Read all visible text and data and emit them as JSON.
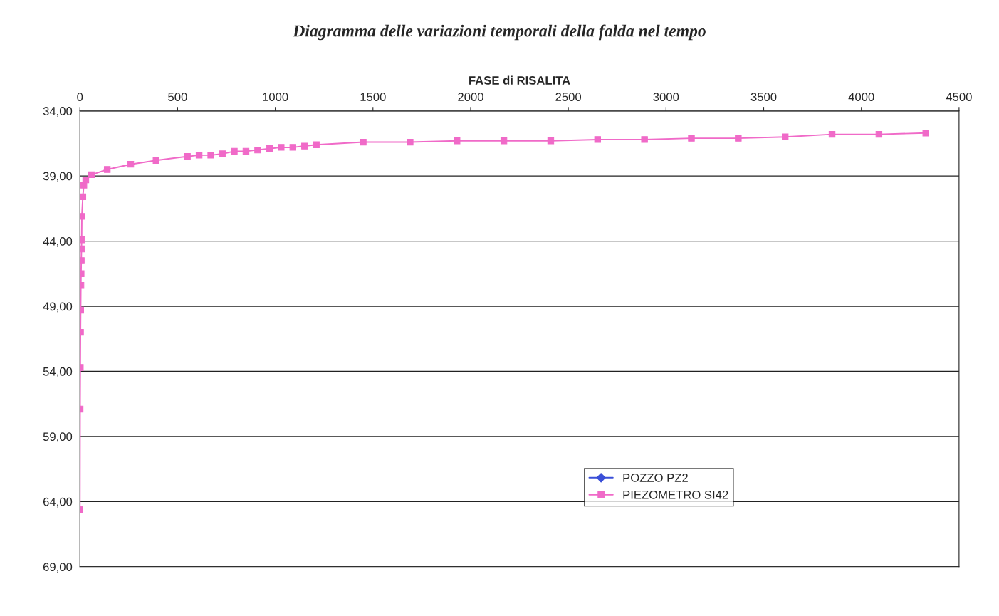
{
  "chart_data": {
    "type": "line",
    "title": "Diagramma delle variazioni temporali della falda nel tempo",
    "xlabel": "FASE di RISALITA",
    "xlim": [
      0,
      4500
    ],
    "xticks": [
      0,
      500,
      1000,
      1500,
      2000,
      2500,
      3000,
      3500,
      4000,
      4500
    ],
    "ylim": [
      69,
      34
    ],
    "yticks": [
      {
        "value": 34,
        "label": "34,00"
      },
      {
        "value": 39,
        "label": "39,00"
      },
      {
        "value": 44,
        "label": "44,00"
      },
      {
        "value": 49,
        "label": "49,00"
      },
      {
        "value": 54,
        "label": "54,00"
      },
      {
        "value": 59,
        "label": "59,00"
      },
      {
        "value": 64,
        "label": "64,00"
      },
      {
        "value": 69,
        "label": "69,00"
      }
    ],
    "grid": "y",
    "legend": "bottom right",
    "line_style": "solid",
    "series": [
      {
        "name": "POZZO PZ2",
        "color": "#3a4fd8",
        "marker": "diamond"
      },
      {
        "name": "PIEZOMETRO SI42",
        "color": "#f06ac8",
        "marker": "square",
        "x": [
          0,
          1,
          2,
          3,
          4,
          5,
          6,
          7,
          8,
          9,
          10,
          15,
          20,
          30,
          60,
          140,
          260,
          390,
          550,
          610,
          670,
          730,
          790,
          850,
          910,
          970,
          1030,
          1090,
          1150,
          1210,
          1450,
          1690,
          1930,
          2170,
          2410,
          2650,
          2890,
          3130,
          3370,
          3610,
          3850,
          4090,
          4330
        ],
        "values": [
          64.6,
          56.9,
          53.7,
          51.0,
          49.3,
          47.4,
          46.5,
          45.5,
          44.6,
          43.9,
          42.1,
          40.6,
          39.7,
          39.3,
          38.9,
          38.5,
          38.1,
          37.8,
          37.5,
          37.4,
          37.4,
          37.3,
          37.1,
          37.1,
          37.0,
          36.9,
          36.8,
          36.8,
          36.7,
          36.6,
          36.4,
          36.4,
          36.3,
          36.3,
          36.3,
          36.2,
          36.2,
          36.1,
          36.1,
          36.0,
          35.8,
          35.8,
          35.7
        ]
      }
    ]
  }
}
